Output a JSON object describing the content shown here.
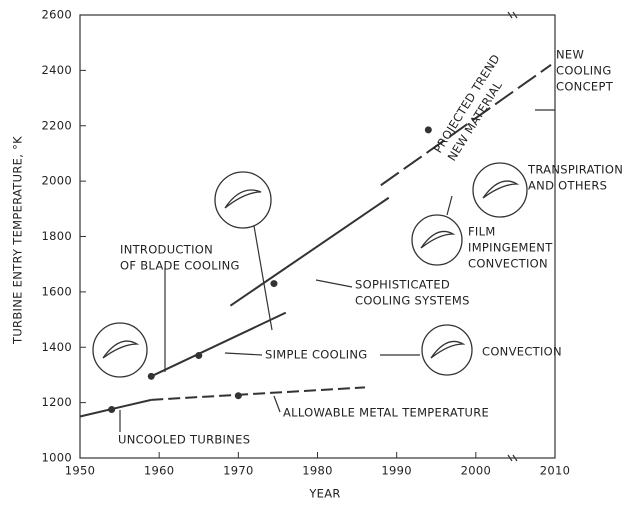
{
  "chart_data": {
    "type": "line",
    "x_label": "YEAR",
    "y_label": "TURBINE ENTRY TEMPERATURE, °K",
    "xlim": [
      1950,
      2010
    ],
    "ylim": [
      1000,
      2600
    ],
    "xticks": [
      1950,
      1960,
      1970,
      1980,
      1990,
      2000,
      2010
    ],
    "yticks": [
      1000,
      1200,
      1400,
      1600,
      1800,
      2000,
      2200,
      2400,
      2600
    ],
    "color": "#333333",
    "series": [
      {
        "x": [
          1950,
          1959
        ],
        "values": [
          1150,
          1210
        ],
        "dashed": false
      },
      {
        "x": [
          1959,
          1986
        ],
        "values": [
          1210,
          1255
        ],
        "dashed": true
      },
      {
        "x": [
          1959,
          1976
        ],
        "values": [
          1295,
          1525
        ],
        "dashed": false
      },
      {
        "x": [
          1969,
          1989
        ],
        "values": [
          1550,
          1940
        ],
        "dashed": false
      },
      {
        "x": [
          1988,
          2009.5
        ],
        "values": [
          1985,
          2420
        ],
        "dashed": true
      }
    ],
    "markers": {
      "x": [
        1954,
        1959,
        1965,
        1970,
        1974.5,
        1994
      ],
      "values": [
        1175,
        1295,
        1370,
        1225,
        1630,
        2185
      ]
    },
    "annotations": [
      {
        "lines": [
          "INTRODUCTION",
          "OF BLADE COOLING"
        ]
      },
      {
        "lines": [
          "SIMPLE COOLING"
        ]
      },
      {
        "lines": [
          "SOPHISTICATED",
          "COOLING SYSTEMS"
        ]
      },
      {
        "lines": [
          "FILM",
          "IMPINGEMENT",
          "CONVECTION"
        ]
      },
      {
        "lines": [
          "TRANSPIRATION",
          "AND OTHERS"
        ]
      },
      {
        "lines": [
          "NEW",
          "COOLING",
          "CONCEPT"
        ]
      },
      {
        "lines": [
          "PROJECTED TREND",
          "NEW MATERIAL"
        ]
      },
      {
        "lines": [
          "CONVECTION"
        ]
      },
      {
        "lines": [
          "ALLOWABLE METAL TEMPERATURE"
        ]
      },
      {
        "lines": [
          "UNCOOLED TURBINES"
        ]
      }
    ]
  }
}
